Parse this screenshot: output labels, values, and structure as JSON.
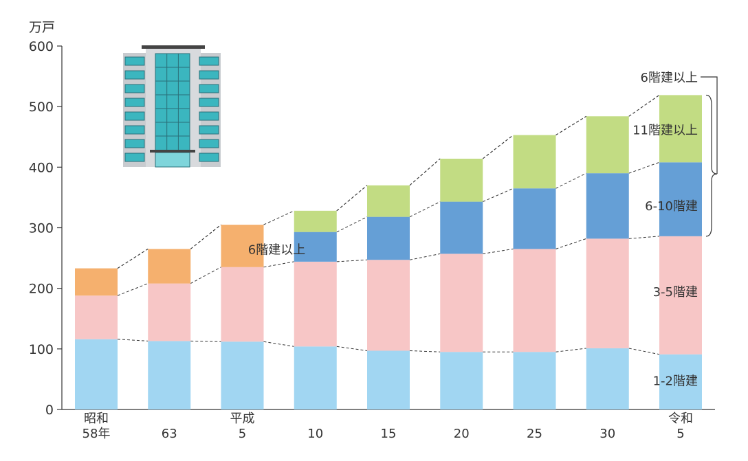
{
  "chart_data": {
    "type": "bar",
    "stacked": true,
    "unit_label": "万戸",
    "categories": [
      [
        "昭和",
        "58年"
      ],
      [
        "63"
      ],
      [
        "平成",
        "5"
      ],
      [
        "10"
      ],
      [
        "15"
      ],
      [
        "20"
      ],
      [
        "25"
      ],
      [
        "30"
      ],
      [
        "令和",
        "5"
      ]
    ],
    "ylim": [
      0,
      600
    ],
    "yticks": [
      0,
      100,
      200,
      300,
      400,
      500,
      600
    ],
    "series": [
      {
        "name": "1-2階建",
        "color": "#a1d6f2",
        "values": [
          116,
          113,
          112,
          104,
          97,
          95,
          95,
          101,
          91
        ]
      },
      {
        "name": "3-5階建",
        "color": "#f7c6c6",
        "values": [
          72,
          95,
          123,
          140,
          150,
          162,
          170,
          181,
          195
        ]
      },
      {
        "name": "6階建以上",
        "color": "#f5b06e",
        "values": [
          45,
          57,
          70,
          null,
          null,
          null,
          null,
          null,
          null
        ]
      },
      {
        "name": "6-10階建",
        "color": "#659fd6",
        "values": [
          null,
          null,
          null,
          49,
          71,
          86,
          100,
          108,
          122
        ]
      },
      {
        "name": "11階建以上",
        "color": "#c2dc83",
        "values": [
          null,
          null,
          null,
          35,
          52,
          71,
          88,
          94,
          111
        ]
      }
    ],
    "annotations": {
      "label_6plus_left": "6階建以上",
      "label_11plus": "11階建以上",
      "label_6_10": "6-10階建",
      "label_3_5": "3-5階建",
      "label_1_2": "1-2階建",
      "bracket_label": "6階建以上"
    }
  }
}
